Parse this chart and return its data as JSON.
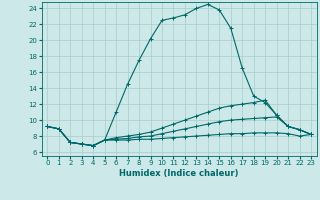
{
  "title": "",
  "xlabel": "Humidex (Indice chaleur)",
  "background_color": "#cce8e8",
  "grid_color": "#aacccc",
  "line_color": "#006868",
  "xlim": [
    -0.5,
    23.5
  ],
  "ylim": [
    5.5,
    24.8
  ],
  "xticks": [
    0,
    1,
    2,
    3,
    4,
    5,
    6,
    7,
    8,
    9,
    10,
    11,
    12,
    13,
    14,
    15,
    16,
    17,
    18,
    19,
    20,
    21,
    22,
    23
  ],
  "yticks": [
    6,
    8,
    10,
    12,
    14,
    16,
    18,
    20,
    22,
    24
  ],
  "lines": [
    {
      "x": [
        0,
        1,
        2,
        3,
        4,
        5,
        6,
        7,
        8,
        9,
        10,
        11,
        12,
        13,
        14,
        15,
        16,
        17,
        18,
        19,
        20,
        21,
        22,
        23
      ],
      "y": [
        9.2,
        8.9,
        7.2,
        7.0,
        6.8,
        7.5,
        11.0,
        14.5,
        17.5,
        20.2,
        22.5,
        22.8,
        23.2,
        24.0,
        24.5,
        23.8,
        21.5,
        16.5,
        13.0,
        12.2,
        10.6,
        9.2,
        8.8,
        8.2
      ]
    },
    {
      "x": [
        0,
        1,
        2,
        3,
        4,
        5,
        6,
        7,
        8,
        9,
        10,
        11,
        12,
        13,
        14,
        15,
        16,
        17,
        18,
        19,
        20,
        21,
        22,
        23
      ],
      "y": [
        9.2,
        8.9,
        7.2,
        7.0,
        6.8,
        7.5,
        7.8,
        8.0,
        8.2,
        8.5,
        9.0,
        9.5,
        10.0,
        10.5,
        11.0,
        11.5,
        11.8,
        12.0,
        12.2,
        12.5,
        10.6,
        9.2,
        8.8,
        8.2
      ]
    },
    {
      "x": [
        0,
        1,
        2,
        3,
        4,
        5,
        6,
        7,
        8,
        9,
        10,
        11,
        12,
        13,
        14,
        15,
        16,
        17,
        18,
        19,
        20,
        21,
        22,
        23
      ],
      "y": [
        9.2,
        8.9,
        7.2,
        7.0,
        6.8,
        7.5,
        7.6,
        7.7,
        7.9,
        8.0,
        8.3,
        8.6,
        8.9,
        9.2,
        9.5,
        9.8,
        10.0,
        10.1,
        10.2,
        10.3,
        10.4,
        9.2,
        8.8,
        8.2
      ]
    },
    {
      "x": [
        0,
        1,
        2,
        3,
        4,
        5,
        6,
        7,
        8,
        9,
        10,
        11,
        12,
        13,
        14,
        15,
        16,
        17,
        18,
        19,
        20,
        21,
        22,
        23
      ],
      "y": [
        9.2,
        8.9,
        7.2,
        7.0,
        6.8,
        7.5,
        7.5,
        7.5,
        7.6,
        7.6,
        7.7,
        7.8,
        7.9,
        8.0,
        8.1,
        8.2,
        8.3,
        8.3,
        8.4,
        8.4,
        8.4,
        8.3,
        8.0,
        8.2
      ]
    }
  ]
}
